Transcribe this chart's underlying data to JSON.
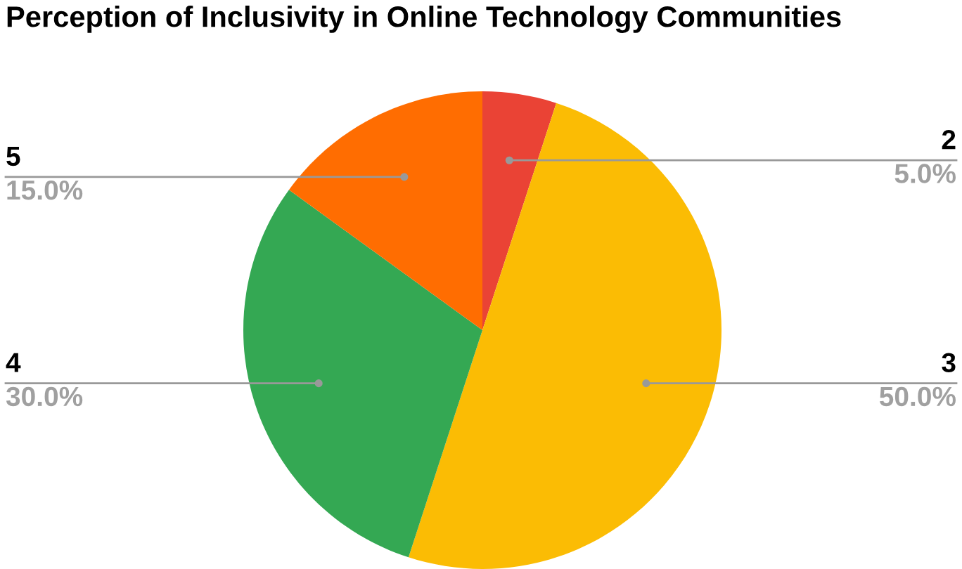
{
  "chart_data": {
    "type": "pie",
    "title": "Perception of Inclusivity in Online Technology Communities",
    "categories": [
      "2",
      "3",
      "4",
      "5"
    ],
    "values": [
      5,
      50,
      30,
      15
    ],
    "colors": [
      "#ea4335",
      "#fbbc04",
      "#34a853",
      "#ff6d01"
    ],
    "value_labels": [
      "5.0%",
      "50.0%",
      "30.0%",
      "15.0%"
    ],
    "legend": false
  }
}
